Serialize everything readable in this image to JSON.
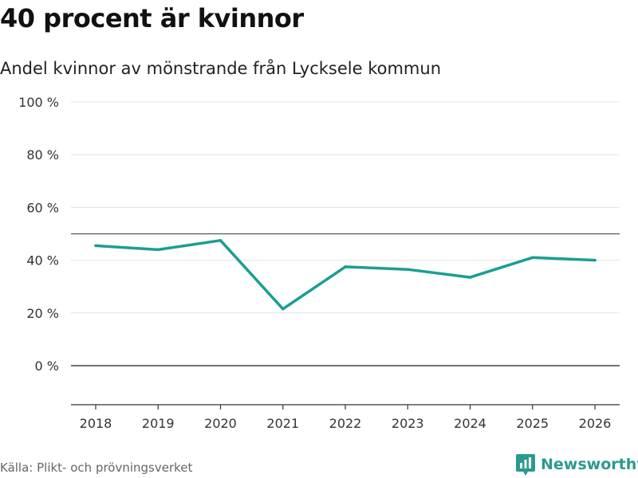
{
  "title": "40 procent är kvinnor",
  "subtitle": "Andel kvinnor av mönstrande från Lycksele kommun",
  "source": "Källa: Plikt- och prövningsverket",
  "brand": "Newsworthy",
  "colors": {
    "line": "#1a9e92",
    "grid": "#e3e3e3",
    "brand": "#2b9a8e"
  },
  "chart_data": {
    "type": "line",
    "title": "40 procent är kvinnor",
    "subtitle": "Andel kvinnor av mönstrande från Lycksele kommun",
    "xlabel": "",
    "ylabel": "",
    "categories": [
      "2018",
      "2019",
      "2020",
      "2021",
      "2022",
      "2023",
      "2024",
      "2025",
      "2026"
    ],
    "series": [
      {
        "name": "Andel kvinnor",
        "values": [
          45.5,
          44,
          47.5,
          21.5,
          37.5,
          36.5,
          33.5,
          41,
          40
        ]
      }
    ],
    "yticks": [
      0,
      20,
      40,
      60,
      80,
      100
    ],
    "ytick_labels": [
      "0 %",
      "20 %",
      "40 %",
      "60 %",
      "80 %",
      "100 %"
    ],
    "ylim": [
      -15,
      100
    ],
    "reference_lines": [
      50,
      0
    ],
    "grid": true
  }
}
